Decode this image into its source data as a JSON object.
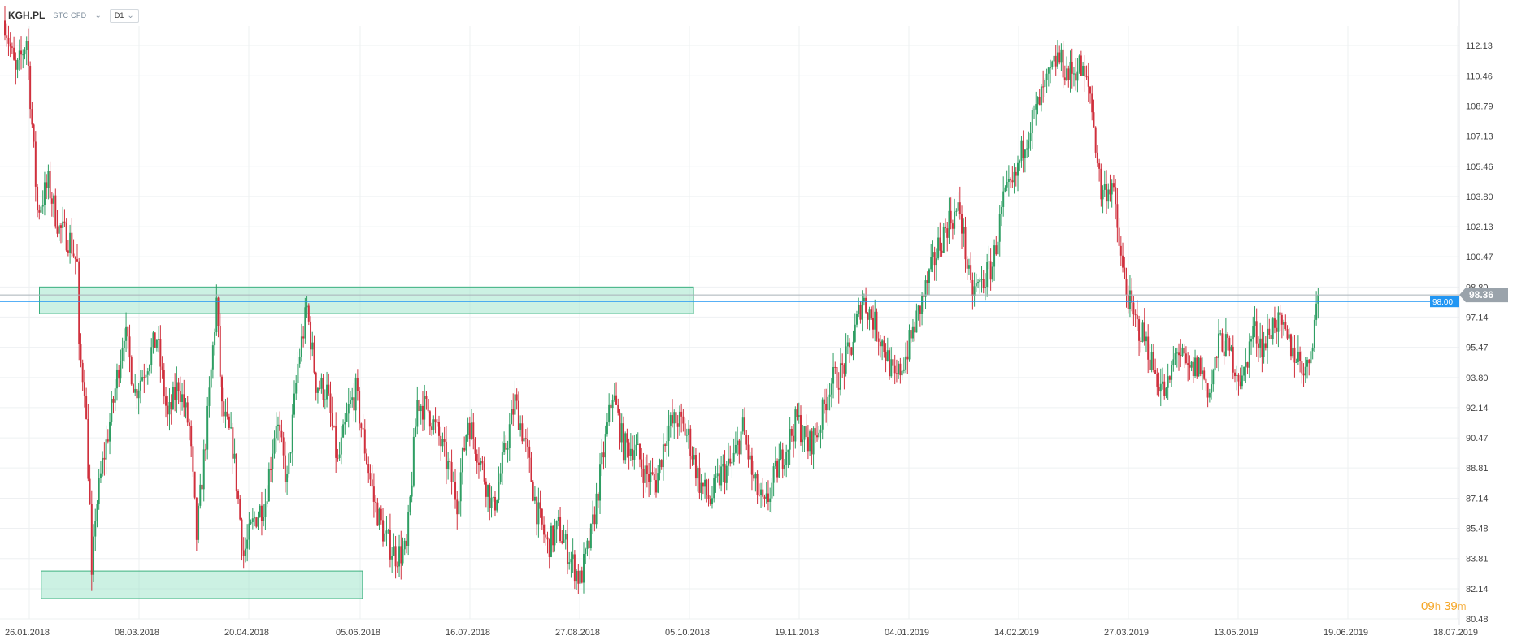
{
  "toolbar": {
    "symbol": "KGH.PL",
    "instrument_type": "STC CFD",
    "timeframe": "D1",
    "dropdown_icon": "chevron-down-icon"
  },
  "countdown": {
    "hours": "09",
    "hours_unit": "h",
    "minutes": "39",
    "minutes_unit": "m"
  },
  "chart_data": {
    "type": "candlestick",
    "title": "",
    "ylim": [
      80.48,
      113.9
    ],
    "y_ticks": [
      "112.13",
      "110.46",
      "108.79",
      "107.13",
      "105.46",
      "103.80",
      "102.13",
      "100.47",
      "98.80",
      "97.14",
      "95.47",
      "93.80",
      "92.14",
      "90.47",
      "88.81",
      "87.14",
      "85.48",
      "83.81",
      "82.14",
      "80.48"
    ],
    "x_ticks": [
      "26.01.2018",
      "08.03.2018",
      "20.04.2018",
      "05.06.2018",
      "16.07.2018",
      "27.08.2018",
      "05.10.2018",
      "19.11.2018",
      "04.01.2019",
      "14.02.2019",
      "27.03.2019",
      "13.05.2019",
      "19.06.2019",
      "18.07.2019"
    ],
    "grid": true,
    "current_price": {
      "value": 98.36,
      "label": "98.36",
      "color": "#9aa3ab"
    },
    "price_line": {
      "value": 98.0,
      "label": "98.00",
      "color": "#2196f3"
    },
    "zones": [
      {
        "name": "resistance-zone",
        "y_low": 97.33,
        "y_high": 98.8,
        "x_start_index": 20,
        "x_end_index": 378,
        "color": "#8ee0c0"
      },
      {
        "name": "support-zone",
        "y_low": 81.6,
        "y_high": 83.12,
        "x_start_index": 21,
        "x_end_index": 195,
        "color": "#8ee0c0"
      }
    ],
    "colors": {
      "up": "#2e9e63",
      "down": "#d0303d"
    },
    "ohlc_path": [
      [
        0,
        113.5
      ],
      [
        6,
        110.5
      ],
      [
        12,
        112.5
      ],
      [
        18,
        103.0
      ],
      [
        24,
        104.5
      ],
      [
        30,
        102.0
      ],
      [
        36,
        101.4
      ],
      [
        40,
        100.0
      ],
      [
        41,
        95.0
      ],
      [
        44,
        93.5
      ],
      [
        47,
        86.5
      ],
      [
        48,
        82.3
      ],
      [
        50,
        86.3
      ],
      [
        54,
        89.0
      ],
      [
        60,
        92.5
      ],
      [
        66,
        96.5
      ],
      [
        72,
        93.0
      ],
      [
        78,
        94.5
      ],
      [
        84,
        96.0
      ],
      [
        90,
        91.5
      ],
      [
        96,
        93.5
      ],
      [
        102,
        91.0
      ],
      [
        106,
        85.0
      ],
      [
        112,
        91.5
      ],
      [
        117,
        98.0
      ],
      [
        120,
        92.0
      ],
      [
        126,
        90.0
      ],
      [
        132,
        84.0
      ],
      [
        138,
        86.0
      ],
      [
        144,
        87.0
      ],
      [
        150,
        91.5
      ],
      [
        156,
        88.0
      ],
      [
        162,
        94.5
      ],
      [
        167,
        97.6
      ],
      [
        172,
        93.5
      ],
      [
        178,
        93.0
      ],
      [
        184,
        89.0
      ],
      [
        190,
        92.0
      ],
      [
        194,
        93.0
      ],
      [
        198,
        90.5
      ],
      [
        204,
        87.0
      ],
      [
        210,
        85.0
      ],
      [
        216,
        84.0
      ],
      [
        222,
        84.2
      ],
      [
        228,
        92.5
      ],
      [
        234,
        92.0
      ],
      [
        240,
        90.5
      ],
      [
        246,
        88.5
      ],
      [
        250,
        87.0
      ],
      [
        256,
        91.5
      ],
      [
        262,
        89.5
      ],
      [
        266,
        88.0
      ],
      [
        270,
        86.5
      ],
      [
        276,
        89.5
      ],
      [
        282,
        92.5
      ],
      [
        288,
        90.0
      ],
      [
        294,
        86.5
      ],
      [
        300,
        84.5
      ],
      [
        306,
        85.5
      ],
      [
        312,
        84.0
      ],
      [
        318,
        82.6
      ],
      [
        324,
        85.0
      ],
      [
        330,
        89.0
      ],
      [
        336,
        93.0
      ],
      [
        342,
        90.0
      ],
      [
        348,
        90.0
      ],
      [
        354,
        88.5
      ],
      [
        360,
        88.0
      ],
      [
        366,
        91.0
      ],
      [
        372,
        91.5
      ],
      [
        378,
        90.5
      ],
      [
        384,
        88.0
      ],
      [
        390,
        87.0
      ],
      [
        396,
        88.5
      ],
      [
        402,
        89.0
      ],
      [
        408,
        91.0
      ],
      [
        414,
        88.0
      ],
      [
        420,
        86.5
      ],
      [
        426,
        88.5
      ],
      [
        432,
        90.0
      ],
      [
        438,
        91.5
      ],
      [
        444,
        90.0
      ],
      [
        450,
        91.0
      ],
      [
        456,
        93.5
      ],
      [
        462,
        94.0
      ],
      [
        468,
        95.5
      ],
      [
        474,
        98.2
      ],
      [
        480,
        97.0
      ],
      [
        486,
        95.5
      ],
      [
        492,
        93.5
      ],
      [
        498,
        95.0
      ],
      [
        504,
        97.0
      ],
      [
        510,
        99.0
      ],
      [
        516,
        101.0
      ],
      [
        522,
        102.5
      ],
      [
        528,
        103.0
      ],
      [
        534,
        98.5
      ],
      [
        540,
        99.0
      ],
      [
        546,
        100.0
      ],
      [
        552,
        103.5
      ],
      [
        558,
        104.5
      ],
      [
        564,
        107.0
      ],
      [
        570,
        108.5
      ],
      [
        576,
        110.0
      ],
      [
        582,
        111.5
      ],
      [
        588,
        110.5
      ],
      [
        594,
        111.0
      ],
      [
        600,
        109.5
      ],
      [
        606,
        104.0
      ],
      [
        612,
        104.5
      ],
      [
        618,
        99.5
      ],
      [
        624,
        97.0
      ],
      [
        630,
        96.0
      ],
      [
        636,
        94.0
      ],
      [
        642,
        92.8
      ],
      [
        648,
        95.5
      ],
      [
        654,
        94.0
      ],
      [
        660,
        94.5
      ],
      [
        666,
        93.0
      ],
      [
        672,
        96.0
      ],
      [
        678,
        95.0
      ],
      [
        684,
        93.5
      ],
      [
        690,
        96.5
      ],
      [
        696,
        95.5
      ],
      [
        702,
        97.0
      ],
      [
        708,
        96.0
      ],
      [
        714,
        95.0
      ],
      [
        720,
        94.2
      ],
      [
        726,
        98.3
      ]
    ]
  }
}
